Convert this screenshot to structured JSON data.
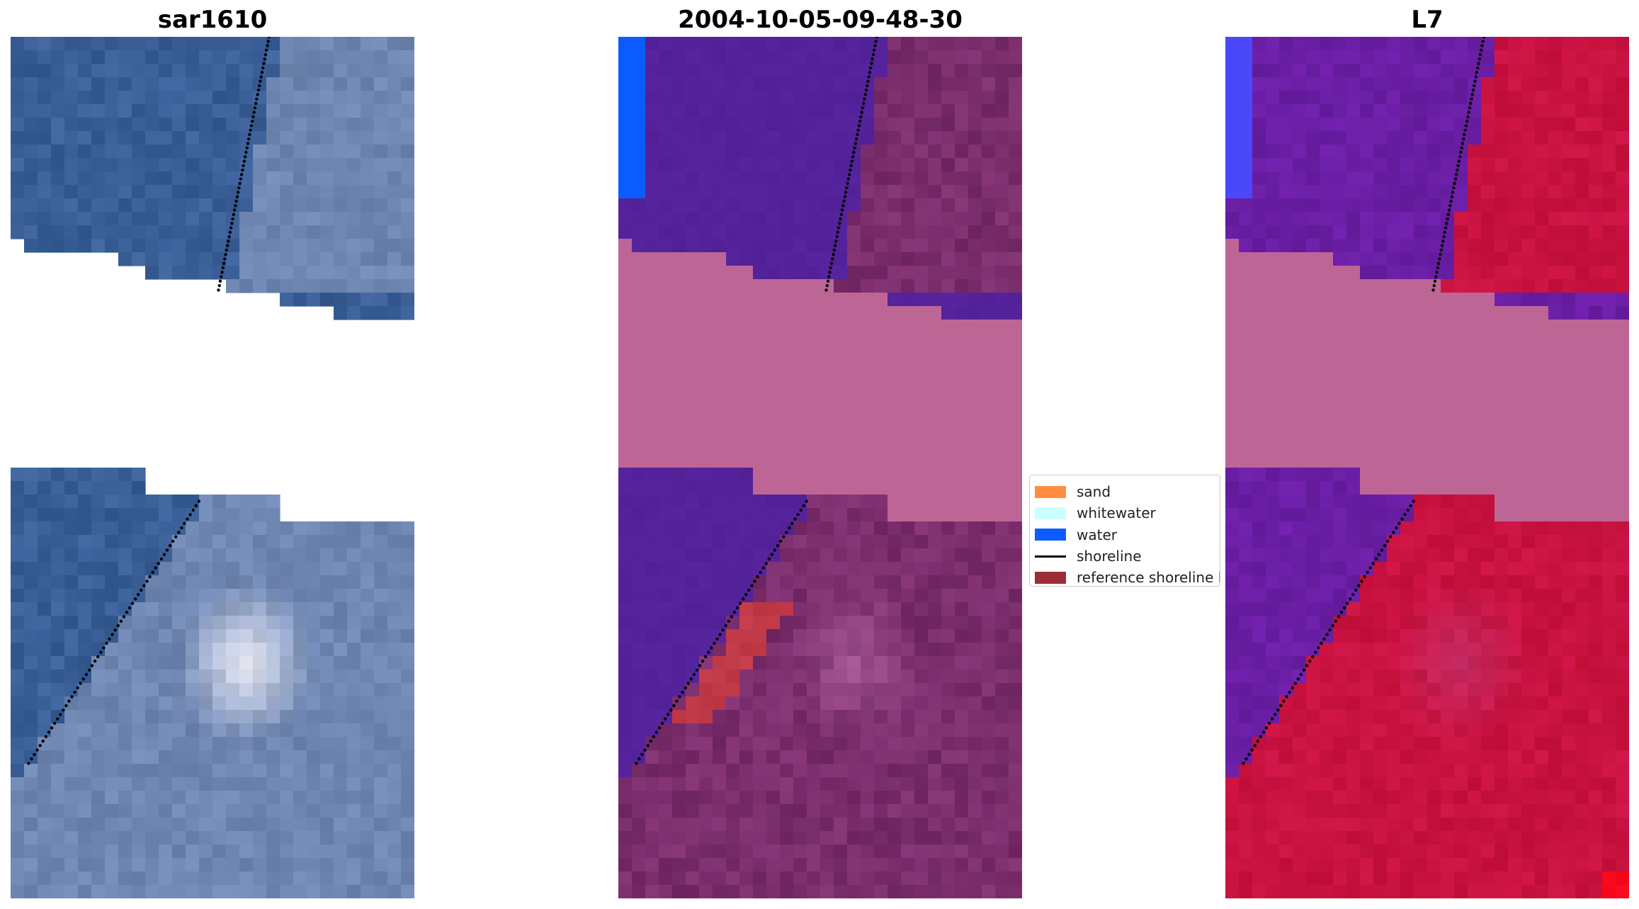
{
  "panels": [
    {
      "title": "sar1610",
      "kind": "rgb"
    },
    {
      "title": "2004-10-05-09-48-30",
      "kind": "classified"
    },
    {
      "title": "L7",
      "kind": "mndwi"
    }
  ],
  "legend": {
    "items": [
      {
        "label": "sand",
        "color": "#ff8c3f",
        "kind": "patch"
      },
      {
        "label": "whitewater",
        "color": "#ccffff",
        "kind": "patch"
      },
      {
        "label": "water",
        "color": "#0b5cff",
        "kind": "patch"
      },
      {
        "label": "shoreline",
        "color": "#000000",
        "kind": "line"
      },
      {
        "label": "reference shoreline buffer",
        "color": "#9b2d37",
        "kind": "patch"
      }
    ]
  },
  "colors": {
    "rgb_water": "#3a5f97",
    "rgb_land": "#6f87b2",
    "rgb_white": "#f2f2fb",
    "class_water": "#54229a",
    "class_land": "#7a2d6c",
    "class_nodata": "#bd6696",
    "class_buffer": "#c13a48",
    "class_bright_water": "#0b5cff",
    "mndwi_water": "#6a1ea4",
    "mndwi_land": "#c81240",
    "mndwi_bright": "#4a48f8",
    "shoreline": "#000000"
  }
}
